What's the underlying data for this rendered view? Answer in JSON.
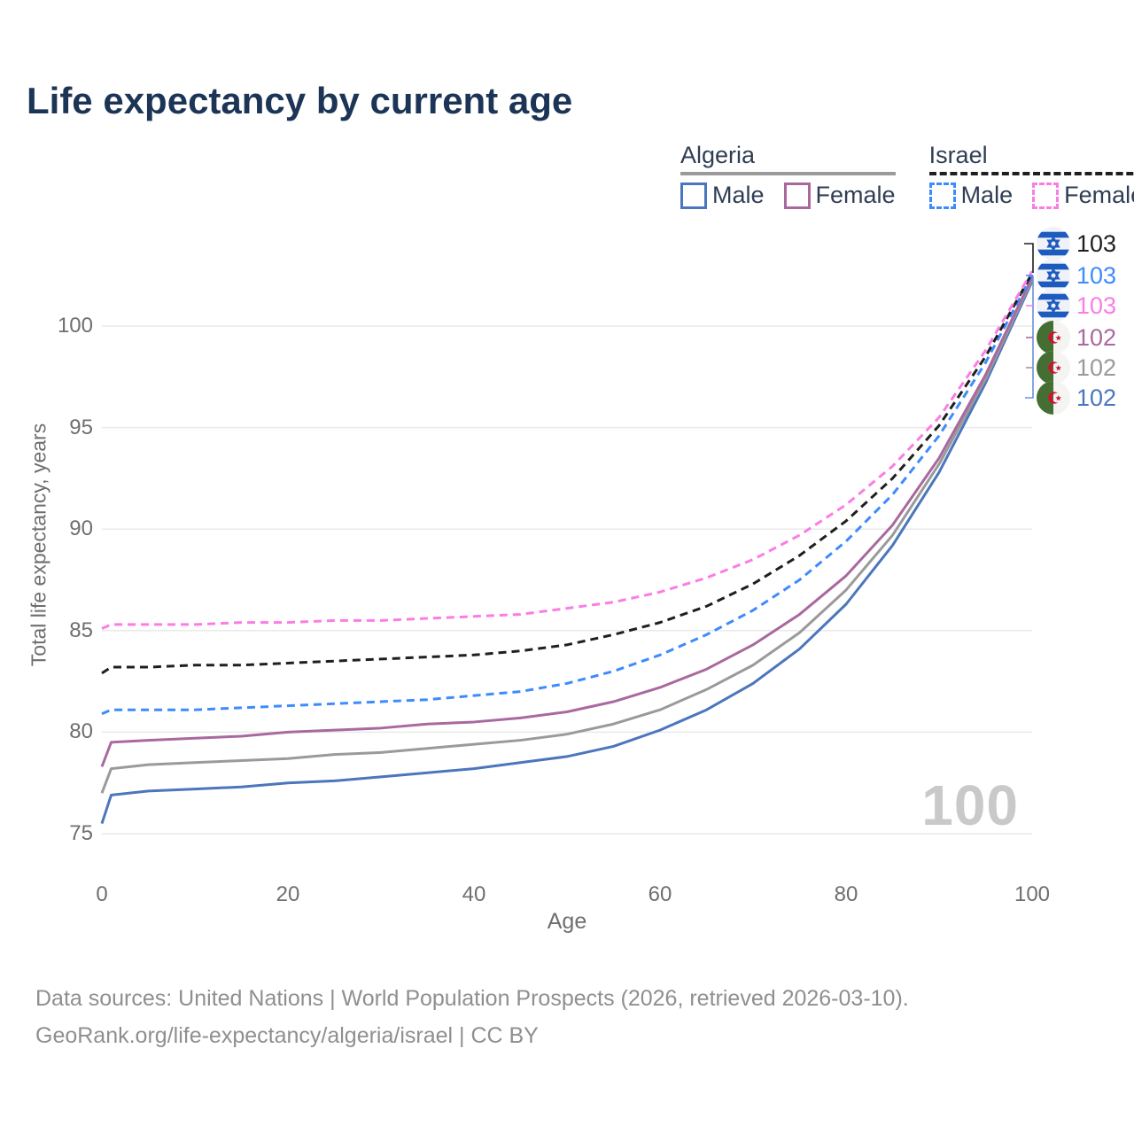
{
  "title": "Life expectancy by current age",
  "watermark": "100",
  "legend": {
    "groups": [
      {
        "label": "Algeria",
        "line_color": "#9a9a9a",
        "line_dashed": false,
        "items": [
          {
            "label": "Male",
            "color": "#4b76bd",
            "dashed": false
          },
          {
            "label": "Female",
            "color": "#a9699f",
            "dashed": false
          }
        ]
      },
      {
        "label": "Israel",
        "line_color": "#1f1f1f",
        "line_dashed": true,
        "items": [
          {
            "label": "Male",
            "color": "#3d8bfd",
            "dashed": true
          },
          {
            "label": "Female",
            "color": "#fb7de4",
            "dashed": true
          }
        ]
      }
    ]
  },
  "chart_data": {
    "type": "line",
    "title": "Life expectancy by current age",
    "xlabel": "Age",
    "ylabel": "Total life expectancy, years",
    "xlim": [
      0,
      100
    ],
    "ylim": [
      75,
      103.5
    ],
    "x_ticks": [
      0,
      20,
      40,
      60,
      80,
      100
    ],
    "y_ticks": [
      75,
      80,
      85,
      90,
      95,
      100
    ],
    "grid": true,
    "legend_position": "top-right",
    "x": [
      0,
      1,
      5,
      10,
      15,
      20,
      25,
      30,
      35,
      40,
      45,
      50,
      55,
      60,
      65,
      70,
      75,
      80,
      85,
      90,
      95,
      100
    ],
    "series": [
      {
        "id": "algeria-male",
        "name": "Algeria — Male",
        "country": "Algeria",
        "color": "#4b76bd",
        "dashed": false,
        "end_value": 102,
        "values": [
          75.5,
          76.9,
          77.1,
          77.2,
          77.3,
          77.5,
          77.6,
          77.8,
          78.0,
          78.2,
          78.5,
          78.8,
          79.3,
          80.1,
          81.1,
          82.4,
          84.1,
          86.3,
          89.2,
          92.8,
          97.2,
          102.2
        ]
      },
      {
        "id": "algeria-all",
        "name": "Algeria",
        "country": "Algeria",
        "color": "#9a9a9a",
        "dashed": false,
        "end_value": 102,
        "values": [
          77.0,
          78.2,
          78.4,
          78.5,
          78.6,
          78.7,
          78.9,
          79.0,
          79.2,
          79.4,
          79.6,
          79.9,
          80.4,
          81.1,
          82.1,
          83.3,
          84.9,
          87.0,
          89.7,
          93.2,
          97.4,
          102.3
        ]
      },
      {
        "id": "algeria-female",
        "name": "Algeria — Female",
        "country": "Algeria",
        "color": "#a9699f",
        "dashed": false,
        "end_value": 102,
        "values": [
          78.3,
          79.5,
          79.6,
          79.7,
          79.8,
          80.0,
          80.1,
          80.2,
          80.4,
          80.5,
          80.7,
          81.0,
          81.5,
          82.2,
          83.1,
          84.3,
          85.8,
          87.7,
          90.2,
          93.5,
          97.6,
          102.4
        ]
      },
      {
        "id": "israel-male",
        "name": "Israel — Male",
        "country": "Israel",
        "color": "#3d8bfd",
        "dashed": true,
        "end_value": 103,
        "values": [
          80.9,
          81.1,
          81.1,
          81.1,
          81.2,
          81.3,
          81.4,
          81.5,
          81.6,
          81.8,
          82.0,
          82.4,
          83.0,
          83.8,
          84.8,
          86.0,
          87.5,
          89.4,
          91.7,
          94.6,
          98.2,
          102.5
        ]
      },
      {
        "id": "israel-all",
        "name": "Israel",
        "country": "Israel",
        "color": "#1f1f1f",
        "dashed": true,
        "end_value": 103,
        "values": [
          82.9,
          83.2,
          83.2,
          83.3,
          83.3,
          83.4,
          83.5,
          83.6,
          83.7,
          83.8,
          84.0,
          84.3,
          84.8,
          85.4,
          86.2,
          87.3,
          88.7,
          90.4,
          92.5,
          95.1,
          98.5,
          102.6
        ]
      },
      {
        "id": "israel-female",
        "name": "Israel — Female",
        "country": "Israel",
        "color": "#fb7de4",
        "dashed": true,
        "end_value": 103,
        "values": [
          85.1,
          85.3,
          85.3,
          85.3,
          85.4,
          85.4,
          85.5,
          85.5,
          85.6,
          85.7,
          85.8,
          86.1,
          86.4,
          86.9,
          87.6,
          88.5,
          89.7,
          91.2,
          93.1,
          95.5,
          98.8,
          102.7
        ]
      }
    ]
  },
  "end_labels": [
    {
      "flag": "israel",
      "value": "103",
      "color": "#1f1f1f",
      "series": "israel-all"
    },
    {
      "flag": "israel",
      "value": "103",
      "color": "#3d8bfd",
      "series": "israel-male"
    },
    {
      "flag": "israel",
      "value": "103",
      "color": "#fb7de4",
      "series": "israel-female"
    },
    {
      "flag": "algeria",
      "value": "102",
      "color": "#a9699f",
      "series": "algeria-female"
    },
    {
      "flag": "algeria",
      "value": "102",
      "color": "#9a9a9a",
      "series": "algeria-all"
    },
    {
      "flag": "algeria",
      "value": "102",
      "color": "#4b76bd",
      "series": "algeria-male"
    }
  ],
  "footer": {
    "line1": "Data sources: United Nations | World Population Prospects (2026, retrieved 2026-03-10).",
    "line2": "GeoRank.org/life-expectancy/algeria/israel | CC BY"
  },
  "colors": {
    "title": "#1c3556",
    "grid": "#e9e9e9",
    "tick_text": "#6f6f6f",
    "footer_text": "#8f8f8f",
    "watermark": "#c9c9c9",
    "israel_flag_blue": "#1d5bbf",
    "algeria_flag_green": "#456f32",
    "algeria_flag_red": "#d21034"
  }
}
